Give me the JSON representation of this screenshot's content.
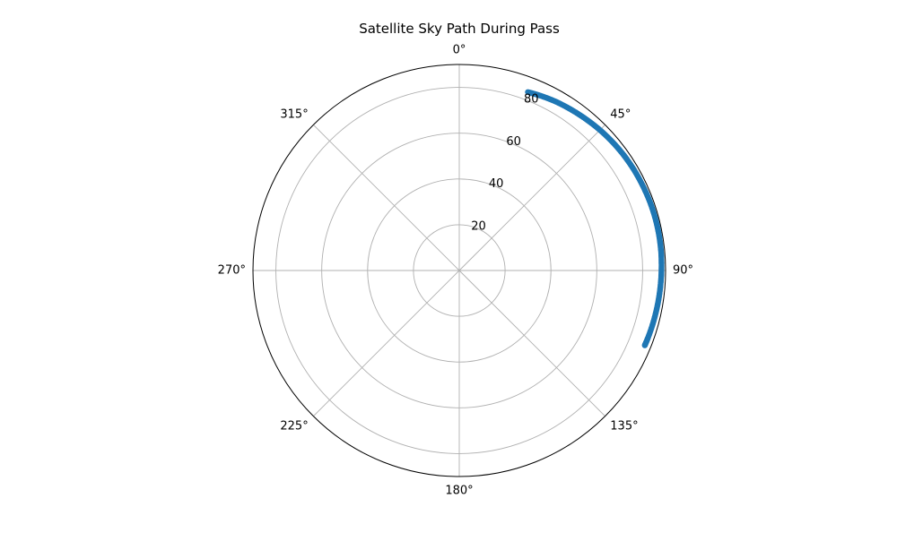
{
  "chart_data": {
    "type": "scatter",
    "projection": "polar",
    "title": "Satellite Sky Path During Pass",
    "theta_zero": "N",
    "theta_direction": "clockwise",
    "theta_tick_labels": [
      "0°",
      "45°",
      "90°",
      "135°",
      "180°",
      "225°",
      "270°",
      "315°"
    ],
    "theta_ticks_deg": [
      0,
      45,
      90,
      135,
      180,
      225,
      270,
      315
    ],
    "r_ticks": [
      20,
      40,
      60,
      80
    ],
    "r_tick_labels": [
      "20",
      "40",
      "60",
      "80"
    ],
    "rlim": [
      0,
      90
    ],
    "grid": true,
    "series": [
      {
        "color": "#1f77b4",
        "theta_deg": [
          21,
          25,
          30,
          35,
          40,
          45,
          50,
          55,
          60,
          65,
          70,
          75,
          80,
          85,
          90,
          95,
          100,
          105,
          110,
          112
        ],
        "r": [
          83.5,
          84.2,
          85.0,
          85.6,
          86.2,
          86.8,
          87.3,
          87.7,
          88.0,
          88.2,
          88.4,
          88.5,
          88.5,
          88.4,
          88.2,
          88.0,
          87.8,
          87.6,
          87.4,
          87.3
        ]
      }
    ]
  },
  "colors": {
    "grid": "#b0b0b0",
    "spine": "#000000",
    "marker": "#1f77b4"
  }
}
